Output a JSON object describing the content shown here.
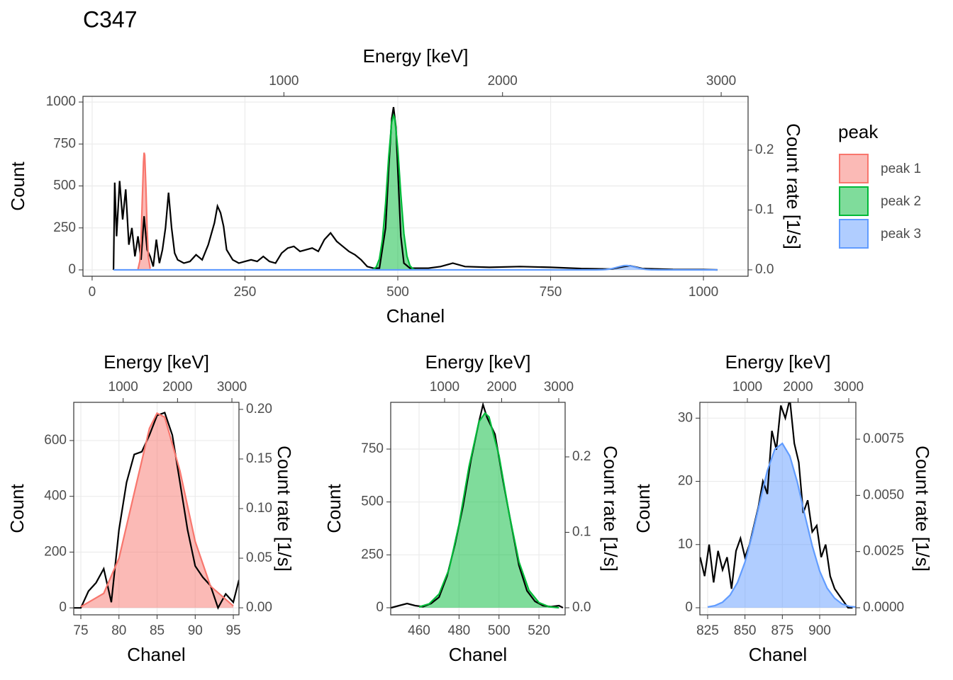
{
  "chart_data": [
    {
      "type": "line",
      "title": "C347",
      "legend_title": "peak",
      "grid": true,
      "xlabel": "Chanel",
      "ylabel": "Count",
      "x2label": "Energy [keV]",
      "y2label": "Count rate [1/s]",
      "xlim": [
        -15,
        1073
      ],
      "xticks": [
        0,
        250,
        500,
        750,
        1000
      ],
      "ylim": [
        -38,
        1034
      ],
      "yticks": [
        0,
        250,
        500,
        750,
        1000
      ],
      "x2lim": [
        81,
        3123
      ],
      "x2ticks": [
        1000,
        2000,
        3000
      ],
      "y2lim": [
        -0.0107,
        0.29
      ],
      "y2ticks": [
        {
          "value": 0,
          "label": "0.0"
        },
        0.1,
        0.2
      ],
      "spectrum": {
        "color": "#000000",
        "x": [
          35,
          37,
          40,
          45,
          50,
          55,
          60,
          65,
          70,
          75,
          80,
          85,
          90,
          95,
          100,
          105,
          110,
          115,
          120,
          125,
          130,
          135,
          140,
          150,
          160,
          170,
          180,
          190,
          200,
          205,
          210,
          215,
          220,
          230,
          240,
          250,
          260,
          270,
          280,
          290,
          300,
          310,
          320,
          330,
          340,
          350,
          360,
          370,
          380,
          390,
          400,
          410,
          420,
          430,
          440,
          450,
          460,
          470,
          480,
          485,
          490,
          493,
          497,
          500,
          505,
          510,
          520,
          530,
          550,
          570,
          590,
          610,
          650,
          700,
          750,
          800,
          850,
          870,
          880,
          900,
          950,
          1000,
          1023
        ],
        "values": [
          0,
          520,
          200,
          530,
          300,
          480,
          150,
          250,
          80,
          200,
          60,
          320,
          120,
          80,
          20,
          180,
          40,
          120,
          250,
          460,
          250,
          100,
          60,
          40,
          50,
          90,
          60,
          150,
          280,
          380,
          340,
          260,
          120,
          60,
          40,
          50,
          60,
          50,
          80,
          50,
          40,
          100,
          130,
          140,
          110,
          120,
          130,
          110,
          180,
          220,
          170,
          140,
          110,
          90,
          60,
          20,
          10,
          10,
          250,
          600,
          900,
          970,
          850,
          600,
          200,
          40,
          10,
          10,
          10,
          20,
          40,
          20,
          15,
          20,
          15,
          8,
          5,
          20,
          25,
          8,
          3,
          2,
          0
        ]
      },
      "series": [
        {
          "name": "peak 1",
          "color": "#f8766d",
          "fill": "#f8766d",
          "x": [
            75,
            78,
            80,
            82,
            84,
            85,
            86,
            88,
            90,
            92,
            95
          ],
          "values": [
            4,
            52,
            178,
            412,
            644,
            698,
            684,
            491,
            238,
            78,
            7
          ]
        },
        {
          "name": "peak 2",
          "color": "#00ba38",
          "fill": "#00ba38",
          "x": [
            460,
            465,
            470,
            475,
            480,
            485,
            490,
            493,
            495,
            500,
            505,
            510,
            515,
            520,
            525,
            530
          ],
          "values": [
            4,
            18,
            65,
            182,
            395,
            668,
            880,
            920,
            902,
            720,
            448,
            217,
            82,
            24,
            5,
            0
          ]
        },
        {
          "name": "peak 3",
          "color": "#619cff",
          "fill": "#619cff",
          "x": [
            35,
            825,
            830,
            835,
            840,
            845,
            850,
            855,
            860,
            865,
            870,
            875,
            880,
            885,
            890,
            895,
            900,
            905,
            910,
            915,
            920,
            925,
            1023
          ],
          "values": [
            0,
            0.12,
            0.35,
            0.88,
            2.0,
            4.0,
            7.2,
            11.7,
            16.8,
            21.7,
            25.1,
            26,
            24.0,
            19.9,
            14.7,
            9.8,
            5.8,
            3.1,
            1.5,
            0.6,
            0.2,
            0.1,
            0
          ]
        }
      ]
    },
    {
      "type": "line",
      "grid": true,
      "xlabel": "Chanel",
      "ylabel": "Count",
      "x2label": "Energy [keV]",
      "y2label": "Count rate [1/s]",
      "xlim": [
        74.07,
        95.74
      ],
      "xticks": [
        75,
        80,
        85,
        90,
        95
      ],
      "ylim": [
        -25,
        737
      ],
      "yticks": [
        0,
        200,
        400,
        600
      ],
      "x2lim": [
        91,
        3130
      ],
      "x2ticks": [
        1000,
        2000,
        3000
      ],
      "y2lim": [
        -0.0071,
        0.2071
      ],
      "y2ticks": [
        {
          "value": 0,
          "label": "0.00"
        },
        0.05,
        {
          "value": 0.1,
          "label": "0.10"
        },
        0.15,
        {
          "value": 0.2,
          "label": "0.20"
        }
      ],
      "spectrum": {
        "color": "#000000",
        "x": [
          74,
          75,
          76,
          77,
          78,
          79,
          80,
          81,
          82,
          83,
          84,
          85,
          86,
          87,
          88,
          89,
          90,
          91,
          92,
          93,
          94,
          95,
          95.74
        ],
        "values": [
          0,
          0,
          60,
          90,
          140,
          20,
          280,
          450,
          550,
          560,
          620,
          690,
          700,
          620,
          450,
          280,
          150,
          110,
          80,
          0,
          50,
          20,
          100
        ]
      },
      "series": [
        {
          "color": "#f8766d",
          "fill": "#f8766d",
          "x": [
            75,
            78,
            80,
            82,
            84,
            85,
            86,
            88,
            90,
            92,
            95
          ],
          "values": [
            4,
            52,
            178,
            412,
            644,
            698,
            684,
            491,
            238,
            78,
            7
          ]
        }
      ]
    },
    {
      "type": "line",
      "grid": true,
      "xlabel": "Chanel",
      "ylabel": "Count",
      "x2label": "Energy [keV]",
      "y2label": "Count rate [1/s]",
      "xlim": [
        445.8,
        533.1
      ],
      "xticks": [
        460,
        480,
        500,
        520
      ],
      "ylim": [
        -33.5,
        971
      ],
      "yticks": [
        0,
        250,
        500,
        750
      ],
      "x2lim": [
        56,
        3112
      ],
      "x2ticks": [
        1000,
        2000,
        3000
      ],
      "y2lim": [
        -0.0094,
        0.2723
      ],
      "y2ticks": [
        {
          "value": 0,
          "label": "0.0"
        },
        0.1,
        0.2
      ],
      "spectrum": {
        "color": "#000000",
        "x": [
          446,
          450,
          454,
          458,
          462,
          466,
          470,
          474,
          478,
          482,
          486,
          490,
          492,
          494,
          498,
          502,
          506,
          510,
          514,
          518,
          522,
          526,
          530,
          532
        ],
        "values": [
          0,
          10,
          20,
          10,
          5,
          20,
          50,
          150,
          300,
          480,
          700,
          880,
          960,
          900,
          820,
          600,
          400,
          200,
          80,
          30,
          10,
          5,
          10,
          0
        ]
      },
      "series": [
        {
          "color": "#00ba38",
          "fill": "#00ba38",
          "x": [
            460,
            465,
            470,
            475,
            480,
            485,
            490,
            493,
            495,
            500,
            505,
            510,
            515,
            520,
            525,
            530
          ],
          "values": [
            4,
            18,
            65,
            182,
            395,
            668,
            880,
            920,
            902,
            720,
            448,
            217,
            82,
            24,
            5,
            0
          ]
        }
      ]
    },
    {
      "type": "line",
      "grid": true,
      "xlabel": "Chanel",
      "ylabel": "Count",
      "x2label": "Energy [keV]",
      "y2label": "Count rate [1/s]",
      "xlim": [
        819.8,
        924.2
      ],
      "xticks": [
        825,
        850,
        875,
        900
      ],
      "ylim": [
        -1.12,
        32.5
      ],
      "yticks": [
        0,
        10,
        20,
        30
      ],
      "x2lim": [
        63,
        3140
      ],
      "x2ticks": [
        1000,
        2000,
        3000
      ],
      "y2lim": [
        -0.000315,
        0.00914
      ],
      "y2ticks": [
        {
          "value": 0,
          "label": "0.0000"
        },
        {
          "value": 0.0025,
          "label": "0.0025"
        },
        {
          "value": 0.005,
          "label": "0.0050"
        },
        {
          "value": 0.0075,
          "label": "0.0075"
        }
      ],
      "spectrum": {
        "color": "#000000",
        "x": [
          820,
          823,
          826,
          829,
          832,
          835,
          838,
          841,
          844,
          847,
          850,
          853,
          856,
          859,
          862,
          865,
          868,
          871,
          874,
          877,
          880,
          883,
          886,
          889,
          892,
          895,
          898,
          901,
          904,
          907,
          910,
          913,
          916,
          919,
          922
        ],
        "values": [
          8,
          5,
          10,
          4,
          9,
          6,
          8,
          3,
          9,
          11,
          8,
          10,
          13,
          16,
          20,
          18,
          28,
          25,
          32,
          30,
          33,
          26,
          23,
          15,
          17,
          12,
          13,
          8,
          10,
          5,
          3,
          2,
          1,
          0,
          0
        ]
      },
      "series": [
        {
          "color": "#619cff",
          "fill": "#619cff",
          "x": [
            825,
            830,
            835,
            840,
            845,
            850,
            855,
            860,
            865,
            870,
            875,
            880,
            885,
            890,
            895,
            900,
            905,
            910,
            915,
            920,
            925
          ],
          "values": [
            0.12,
            0.35,
            0.88,
            2.0,
            4.0,
            7.2,
            11.7,
            16.8,
            21.7,
            25.1,
            26,
            24.0,
            19.9,
            14.7,
            9.8,
            5.8,
            3.1,
            1.5,
            0.6,
            0.2,
            0.1
          ]
        }
      ]
    }
  ]
}
